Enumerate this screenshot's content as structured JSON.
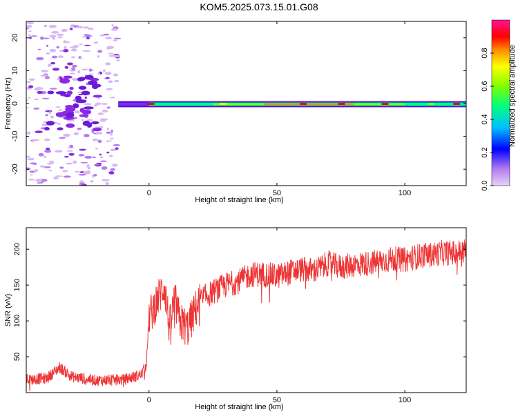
{
  "title": "KOM5.2025.073.15.01.G08",
  "chart_data": [
    {
      "type": "heatmap",
      "xlabel": "Height of straight line (km)",
      "ylabel": "Frequency (Hz)",
      "colorbar_label": "Normalized spectral amplitude",
      "xlim": [
        -48,
        124
      ],
      "ylim": [
        -25,
        25
      ],
      "x_ticks": [
        0,
        50,
        100
      ],
      "y_ticks": [
        -20,
        -10,
        0,
        10,
        20
      ],
      "colorbar_range": [
        0,
        1
      ],
      "colorbar_ticks": [
        0.0,
        0.2,
        0.4,
        0.6,
        0.8
      ],
      "colormap": [
        "#e6d2f5",
        "#8a2be2",
        "#0000ff",
        "#00bfff",
        "#00ff7f",
        "#80ff00",
        "#ffff00",
        "#ff8c00",
        "#ff0000",
        "#ff1493"
      ],
      "ridge": {
        "center_frequency_hz": 0,
        "segments": [
          {
            "x": [
              -12,
              0
            ],
            "level": 0.15
          },
          {
            "x": [
              0,
              25
            ],
            "level": 0.45
          },
          {
            "x": [
              25,
              45
            ],
            "level": 0.55
          },
          {
            "x": [
              45,
              80
            ],
            "level": 0.75
          },
          {
            "x": [
              80,
              100
            ],
            "level": 0.5
          },
          {
            "x": [
              100,
              124
            ],
            "level": 0.45
          }
        ]
      },
      "scatter_region": {
        "x": [
          -48,
          -12
        ],
        "y": [
          -25,
          25
        ],
        "level": 0.1
      }
    },
    {
      "type": "line",
      "xlabel": "Height of straight line (km)",
      "ylabel": "SNR (v/v)",
      "xlim": [
        -48,
        124
      ],
      "ylim": [
        0,
        230
      ],
      "x_ticks": [
        0,
        50,
        100
      ],
      "y_ticks": [
        50,
        100,
        150,
        200
      ],
      "series": [
        {
          "color": "#ee3333",
          "x": [
            -48,
            -40,
            -35,
            -30,
            -20,
            -10,
            -3,
            -1,
            0,
            2,
            6,
            8,
            10,
            12,
            15,
            20,
            25,
            30,
            35,
            40,
            45,
            50,
            55,
            60,
            65,
            70,
            75,
            80,
            85,
            90,
            95,
            100,
            105,
            110,
            115,
            120,
            124
          ],
          "values": [
            18,
            20,
            35,
            22,
            17,
            18,
            25,
            40,
            105,
            120,
            150,
            90,
            130,
            100,
            90,
            130,
            140,
            150,
            155,
            165,
            165,
            162,
            168,
            172,
            170,
            180,
            175,
            178,
            180,
            183,
            186,
            185,
            190,
            192,
            195,
            195,
            198
          ]
        }
      ]
    }
  ]
}
